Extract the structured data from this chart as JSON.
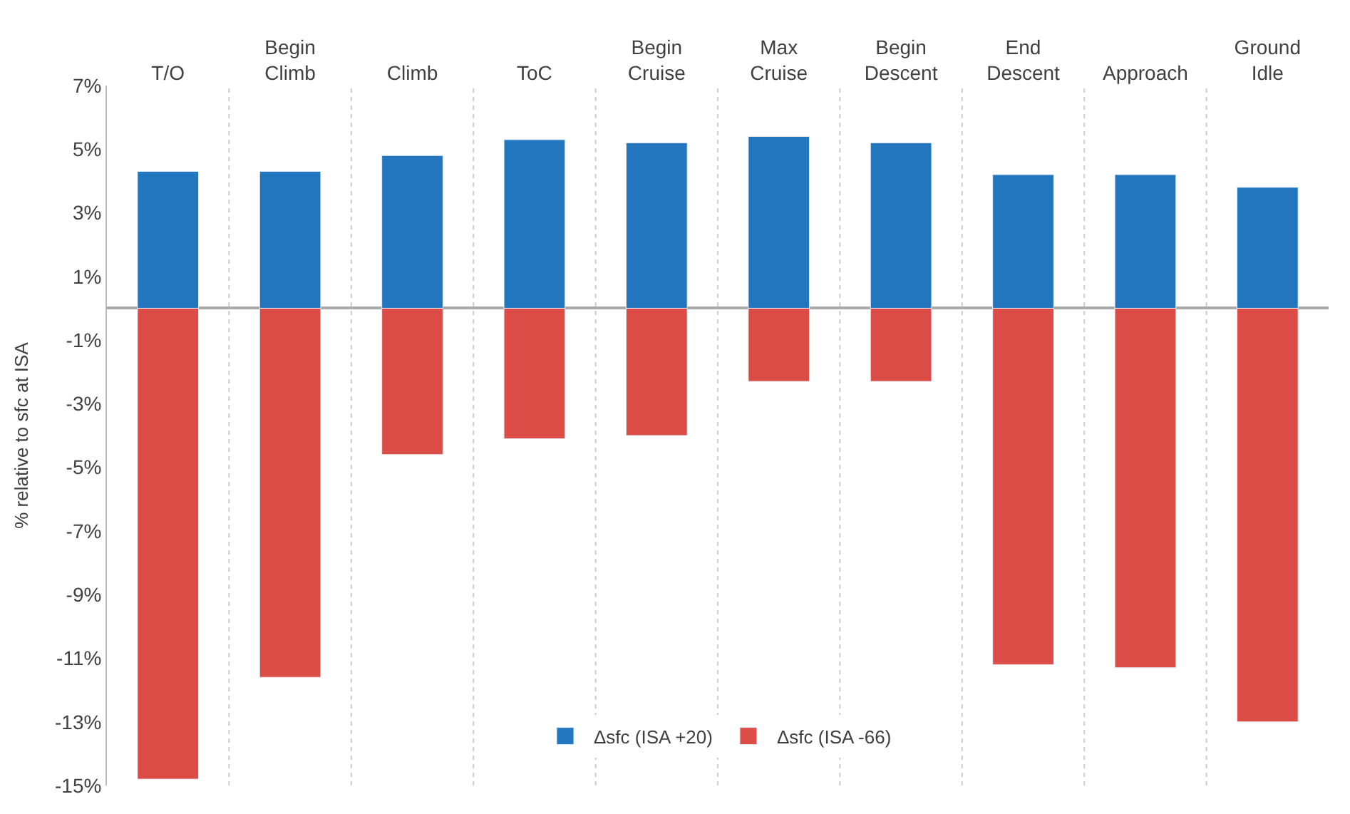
{
  "chart_data": {
    "type": "bar",
    "ylabel": "% relative to sfc at ISA",
    "categories": [
      "T/O",
      "Begin Climb",
      "Climb",
      "ToC",
      "Begin Cruise",
      "Max Cruise",
      "Begin Descent",
      "End Descent",
      "Approach",
      "Ground Idle"
    ],
    "series": [
      {
        "name": "Δsfc (ISA +20)",
        "color": "#2176bd",
        "values": [
          4.3,
          4.3,
          4.8,
          5.3,
          5.2,
          5.4,
          5.2,
          4.2,
          4.2,
          3.8
        ]
      },
      {
        "name": "Δsfc (ISA -66)",
        "color": "#dc4c47",
        "values": [
          -14.8,
          -11.6,
          -4.6,
          -4.1,
          -4.0,
          -2.3,
          -2.3,
          -11.2,
          -11.3,
          -13.0
        ]
      }
    ],
    "stacked": true,
    "ylim": [
      -15,
      7
    ],
    "yticks": [
      {
        "value": 7,
        "label": "7%"
      },
      {
        "value": 5,
        "label": "5%"
      },
      {
        "value": 3,
        "label": "3%"
      },
      {
        "value": 1,
        "label": "1%"
      },
      {
        "value": -1,
        "label": "-1%"
      },
      {
        "value": -3,
        "label": "-3%"
      },
      {
        "value": -5,
        "label": "-5%"
      },
      {
        "value": -7,
        "label": "-7%"
      },
      {
        "value": -9,
        "label": "-9%"
      },
      {
        "value": -11,
        "label": "-11%"
      },
      {
        "value": -13,
        "label": "-13%"
      },
      {
        "value": -15,
        "label": "-15%"
      }
    ],
    "grid": "x",
    "legend": "bottom"
  }
}
